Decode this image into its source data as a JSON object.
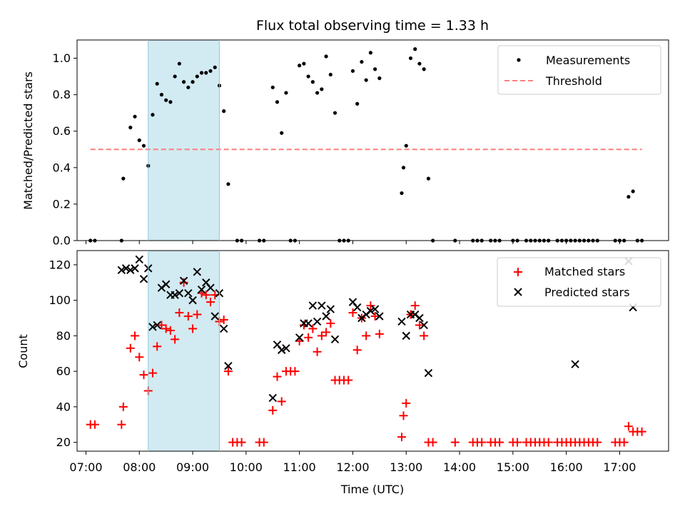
{
  "title": "Flux total observing time = 1.33 h",
  "chart_data": [
    {
      "type": "scatter",
      "title": "Flux total observing time = 1.33 h",
      "xlabel": "",
      "ylabel": "Matched/Predicted stars",
      "xlim": [
        "06:50",
        "17:55"
      ],
      "ylim": [
        0,
        1.1
      ],
      "yticks": [
        "0.0",
        "0.2",
        "0.4",
        "0.6",
        "0.8",
        "1.0"
      ],
      "highlight_span": {
        "start": "08:10",
        "end": "09:30",
        "color": "#add8e6"
      },
      "legend_position": "top-right",
      "threshold": {
        "name": "Threshold",
        "value": 0.5,
        "start": "07:05",
        "end": "17:25",
        "color": "#ff7f7f"
      },
      "series": [
        {
          "name": "Measurements",
          "color": "#000000",
          "marker": "dot",
          "points": [
            [
              "07:05",
              0
            ],
            [
              "07:10",
              0
            ],
            [
              "07:40",
              0
            ],
            [
              "07:42",
              0.34
            ],
            [
              "07:50",
              0.62
            ],
            [
              "07:55",
              0.68
            ],
            [
              "08:00",
              0.55
            ],
            [
              "08:05",
              0.52
            ],
            [
              "08:10",
              0.41
            ],
            [
              "08:15",
              0.69
            ],
            [
              "08:20",
              0.86
            ],
            [
              "08:25",
              0.8
            ],
            [
              "08:30",
              0.77
            ],
            [
              "08:35",
              0.76
            ],
            [
              "08:40",
              0.9
            ],
            [
              "08:45",
              0.97
            ],
            [
              "08:50",
              0.87
            ],
            [
              "08:55",
              0.84
            ],
            [
              "09:00",
              0.87
            ],
            [
              "09:05",
              0.9
            ],
            [
              "09:10",
              0.92
            ],
            [
              "09:15",
              0.92
            ],
            [
              "09:20",
              0.93
            ],
            [
              "09:25",
              0.95
            ],
            [
              "09:30",
              0.85
            ],
            [
              "09:35",
              0.71
            ],
            [
              "09:40",
              0.31
            ],
            [
              "09:50",
              0
            ],
            [
              "09:55",
              0
            ],
            [
              "10:15",
              0
            ],
            [
              "10:20",
              0
            ],
            [
              "10:30",
              0.84
            ],
            [
              "10:35",
              0.76
            ],
            [
              "10:40",
              0.59
            ],
            [
              "10:45",
              0.81
            ],
            [
              "10:50",
              0
            ],
            [
              "10:55",
              0
            ],
            [
              "11:00",
              0.96
            ],
            [
              "11:05",
              0.97
            ],
            [
              "11:10",
              0.9
            ],
            [
              "11:15",
              0.87
            ],
            [
              "11:20",
              0.81
            ],
            [
              "11:25",
              0.83
            ],
            [
              "11:30",
              1.01
            ],
            [
              "11:35",
              0.91
            ],
            [
              "11:40",
              0.7
            ],
            [
              "11:45",
              0
            ],
            [
              "11:50",
              0
            ],
            [
              "11:55",
              0
            ],
            [
              "12:00",
              0.93
            ],
            [
              "12:05",
              0.75
            ],
            [
              "12:10",
              0.98
            ],
            [
              "12:15",
              0.88
            ],
            [
              "12:20",
              1.03
            ],
            [
              "12:25",
              0.94
            ],
            [
              "12:30",
              0.89
            ],
            [
              "12:55",
              0.26
            ],
            [
              "12:57",
              0.4
            ],
            [
              "13:00",
              0.52
            ],
            [
              "13:05",
              1.0
            ],
            [
              "13:10",
              1.05
            ],
            [
              "13:15",
              0.97
            ],
            [
              "13:20",
              0.94
            ],
            [
              "13:25",
              0.34
            ],
            [
              "13:30",
              0
            ],
            [
              "13:55",
              0
            ],
            [
              "14:15",
              0
            ],
            [
              "14:20",
              0
            ],
            [
              "14:25",
              0
            ],
            [
              "14:35",
              0
            ],
            [
              "14:40",
              0
            ],
            [
              "14:45",
              0
            ],
            [
              "15:00",
              0
            ],
            [
              "15:05",
              0
            ],
            [
              "15:15",
              0
            ],
            [
              "15:20",
              0
            ],
            [
              "15:25",
              0
            ],
            [
              "15:30",
              0
            ],
            [
              "15:35",
              0
            ],
            [
              "15:40",
              0
            ],
            [
              "15:50",
              0
            ],
            [
              "15:55",
              0
            ],
            [
              "16:00",
              0
            ],
            [
              "16:05",
              0
            ],
            [
              "16:10",
              0
            ],
            [
              "16:15",
              0
            ],
            [
              "16:20",
              0
            ],
            [
              "16:25",
              0
            ],
            [
              "16:30",
              0
            ],
            [
              "16:35",
              0
            ],
            [
              "16:55",
              0
            ],
            [
              "17:00",
              0
            ],
            [
              "17:05",
              0
            ],
            [
              "17:10",
              0.24
            ],
            [
              "17:15",
              0.27
            ],
            [
              "17:20",
              0
            ],
            [
              "17:25",
              0
            ]
          ]
        }
      ]
    },
    {
      "type": "scatter",
      "title": "",
      "xlabel": "Time (UTC)",
      "ylabel": "Count",
      "xlim": [
        "06:50",
        "17:55"
      ],
      "ylim": [
        15,
        128
      ],
      "xticks": [
        "07:00",
        "08:00",
        "09:00",
        "10:00",
        "11:00",
        "12:00",
        "13:00",
        "14:00",
        "15:00",
        "16:00",
        "17:00"
      ],
      "yticks": [
        "20",
        "40",
        "60",
        "80",
        "100",
        "120"
      ],
      "highlight_span": {
        "start": "08:10",
        "end": "09:30",
        "color": "#add8e6"
      },
      "legend_position": "top-right",
      "series": [
        {
          "name": "Matched stars",
          "color": "#ff0000",
          "marker": "plus",
          "points": [
            [
              "07:05",
              30
            ],
            [
              "07:10",
              30
            ],
            [
              "07:40",
              30
            ],
            [
              "07:42",
              40
            ],
            [
              "07:50",
              73
            ],
            [
              "07:55",
              80
            ],
            [
              "08:00",
              68
            ],
            [
              "08:05",
              58
            ],
            [
              "08:10",
              49
            ],
            [
              "08:15",
              59
            ],
            [
              "08:20",
              74
            ],
            [
              "08:25",
              86
            ],
            [
              "08:30",
              84
            ],
            [
              "08:35",
              83
            ],
            [
              "08:40",
              78
            ],
            [
              "08:45",
              93
            ],
            [
              "08:50",
              110
            ],
            [
              "08:55",
              91
            ],
            [
              "09:00",
              84
            ],
            [
              "09:05",
              92
            ],
            [
              "09:10",
              104
            ],
            [
              "09:15",
              103
            ],
            [
              "09:20",
              99
            ],
            [
              "09:25",
              103
            ],
            [
              "09:30",
              88
            ],
            [
              "09:35",
              89
            ],
            [
              "09:40",
              60
            ],
            [
              "09:45",
              20
            ],
            [
              "09:50",
              20
            ],
            [
              "09:55",
              20
            ],
            [
              "10:15",
              20
            ],
            [
              "10:20",
              20
            ],
            [
              "10:30",
              38
            ],
            [
              "10:35",
              57
            ],
            [
              "10:40",
              43
            ],
            [
              "10:45",
              60
            ],
            [
              "10:50",
              60
            ],
            [
              "10:55",
              60
            ],
            [
              "11:00",
              77
            ],
            [
              "11:05",
              86
            ],
            [
              "11:10",
              79
            ],
            [
              "11:15",
              84
            ],
            [
              "11:20",
              71
            ],
            [
              "11:25",
              80
            ],
            [
              "11:30",
              82
            ],
            [
              "11:35",
              87
            ],
            [
              "11:40",
              55
            ],
            [
              "11:45",
              55
            ],
            [
              "11:50",
              55
            ],
            [
              "11:55",
              55
            ],
            [
              "12:00",
              93
            ],
            [
              "12:05",
              72
            ],
            [
              "12:10",
              90
            ],
            [
              "12:15",
              80
            ],
            [
              "12:20",
              97
            ],
            [
              "12:25",
              91
            ],
            [
              "12:30",
              81
            ],
            [
              "12:55",
              23
            ],
            [
              "12:57",
              35
            ],
            [
              "13:00",
              42
            ],
            [
              "13:05",
              92
            ],
            [
              "13:10",
              97
            ],
            [
              "13:15",
              86
            ],
            [
              "13:20",
              80
            ],
            [
              "13:25",
              20
            ],
            [
              "13:30",
              20
            ],
            [
              "13:55",
              20
            ],
            [
              "14:15",
              20
            ],
            [
              "14:20",
              20
            ],
            [
              "14:25",
              20
            ],
            [
              "14:35",
              20
            ],
            [
              "14:40",
              20
            ],
            [
              "14:45",
              20
            ],
            [
              "15:00",
              20
            ],
            [
              "15:05",
              20
            ],
            [
              "15:15",
              20
            ],
            [
              "15:20",
              20
            ],
            [
              "15:25",
              20
            ],
            [
              "15:30",
              20
            ],
            [
              "15:35",
              20
            ],
            [
              "15:40",
              20
            ],
            [
              "15:50",
              20
            ],
            [
              "15:55",
              20
            ],
            [
              "16:00",
              20
            ],
            [
              "16:05",
              20
            ],
            [
              "16:10",
              20
            ],
            [
              "16:15",
              20
            ],
            [
              "16:20",
              20
            ],
            [
              "16:25",
              20
            ],
            [
              "16:30",
              20
            ],
            [
              "16:35",
              20
            ],
            [
              "16:55",
              20
            ],
            [
              "17:00",
              20
            ],
            [
              "17:05",
              20
            ],
            [
              "17:10",
              29
            ],
            [
              "17:15",
              26
            ],
            [
              "17:20",
              26
            ],
            [
              "17:25",
              26
            ]
          ]
        },
        {
          "name": "Predicted stars",
          "color": "#000000",
          "marker": "x",
          "points": [
            [
              "07:40",
              117
            ],
            [
              "07:45",
              118
            ],
            [
              "07:50",
              117
            ],
            [
              "07:55",
              118
            ],
            [
              "08:00",
              123
            ],
            [
              "08:05",
              112
            ],
            [
              "08:10",
              118
            ],
            [
              "08:15",
              85
            ],
            [
              "08:20",
              86
            ],
            [
              "08:25",
              107
            ],
            [
              "08:30",
              109
            ],
            [
              "08:35",
              103
            ],
            [
              "08:40",
              103
            ],
            [
              "08:45",
              104
            ],
            [
              "08:50",
              111
            ],
            [
              "08:55",
              104
            ],
            [
              "09:00",
              100
            ],
            [
              "09:05",
              116
            ],
            [
              "09:10",
              106
            ],
            [
              "09:15",
              110
            ],
            [
              "09:20",
              107
            ],
            [
              "09:25",
              91
            ],
            [
              "09:30",
              104
            ],
            [
              "09:35",
              84
            ],
            [
              "09:40",
              63
            ],
            [
              "10:30",
              45
            ],
            [
              "10:35",
              75
            ],
            [
              "10:40",
              72
            ],
            [
              "10:45",
              73
            ],
            [
              "11:00",
              79
            ],
            [
              "11:05",
              87
            ],
            [
              "11:10",
              87
            ],
            [
              "11:15",
              97
            ],
            [
              "11:20",
              88
            ],
            [
              "11:25",
              97
            ],
            [
              "11:30",
              91
            ],
            [
              "11:35",
              95
            ],
            [
              "11:40",
              78
            ],
            [
              "12:00",
              99
            ],
            [
              "12:05",
              96
            ],
            [
              "12:10",
              90
            ],
            [
              "12:15",
              92
            ],
            [
              "12:20",
              94
            ],
            [
              "12:25",
              95
            ],
            [
              "12:30",
              91
            ],
            [
              "12:55",
              88
            ],
            [
              "13:00",
              80
            ],
            [
              "13:05",
              92
            ],
            [
              "13:10",
              92
            ],
            [
              "13:15",
              90
            ],
            [
              "13:20",
              86
            ],
            [
              "13:25",
              59
            ],
            [
              "16:10",
              64
            ],
            [
              "17:10",
              122
            ],
            [
              "17:15",
              96
            ]
          ]
        }
      ]
    }
  ]
}
